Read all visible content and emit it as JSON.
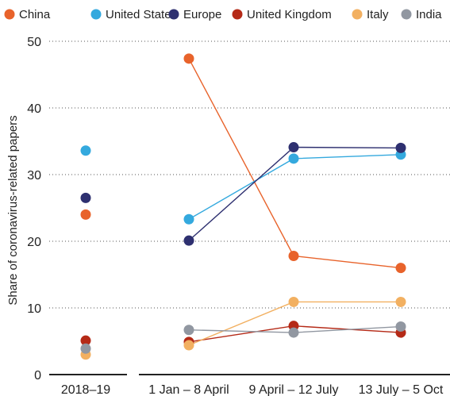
{
  "chart_data": {
    "type": "scatter",
    "ylabel": "Share of coronavirus-related papers",
    "ylim": [
      0,
      50
    ],
    "yticks": [
      "0",
      "10",
      "20",
      "30",
      "40",
      "50"
    ],
    "grid": "horizontal dotted",
    "legend_position": "top",
    "panels": [
      {
        "name": "baseline",
        "categories": [
          "2018–19"
        ],
        "connected": false
      },
      {
        "name": "pandemic",
        "categories": [
          "1 Jan – 8 April",
          "9 April – 12 July",
          "13 July – 5 Oct"
        ],
        "connected": true
      }
    ],
    "series": [
      {
        "name": "China",
        "color": "#E8632B",
        "baseline": 24.0,
        "values": [
          47.4,
          17.8,
          16.0
        ]
      },
      {
        "name": "United States",
        "color": "#34A9DE",
        "baseline": 33.6,
        "values": [
          23.3,
          32.4,
          33.0
        ]
      },
      {
        "name": "Europe",
        "color": "#2E3070",
        "baseline": 26.5,
        "values": [
          20.1,
          34.1,
          34.0
        ]
      },
      {
        "name": "United Kingdom",
        "color": "#B52A17",
        "baseline": 5.1,
        "values": [
          4.9,
          7.3,
          6.3
        ]
      },
      {
        "name": "Italy",
        "color": "#F2B061",
        "baseline": 3.0,
        "values": [
          4.4,
          10.9,
          10.9
        ]
      },
      {
        "name": "India",
        "color": "#9197A1",
        "baseline": 3.9,
        "values": [
          6.7,
          6.3,
          7.2
        ]
      }
    ]
  }
}
